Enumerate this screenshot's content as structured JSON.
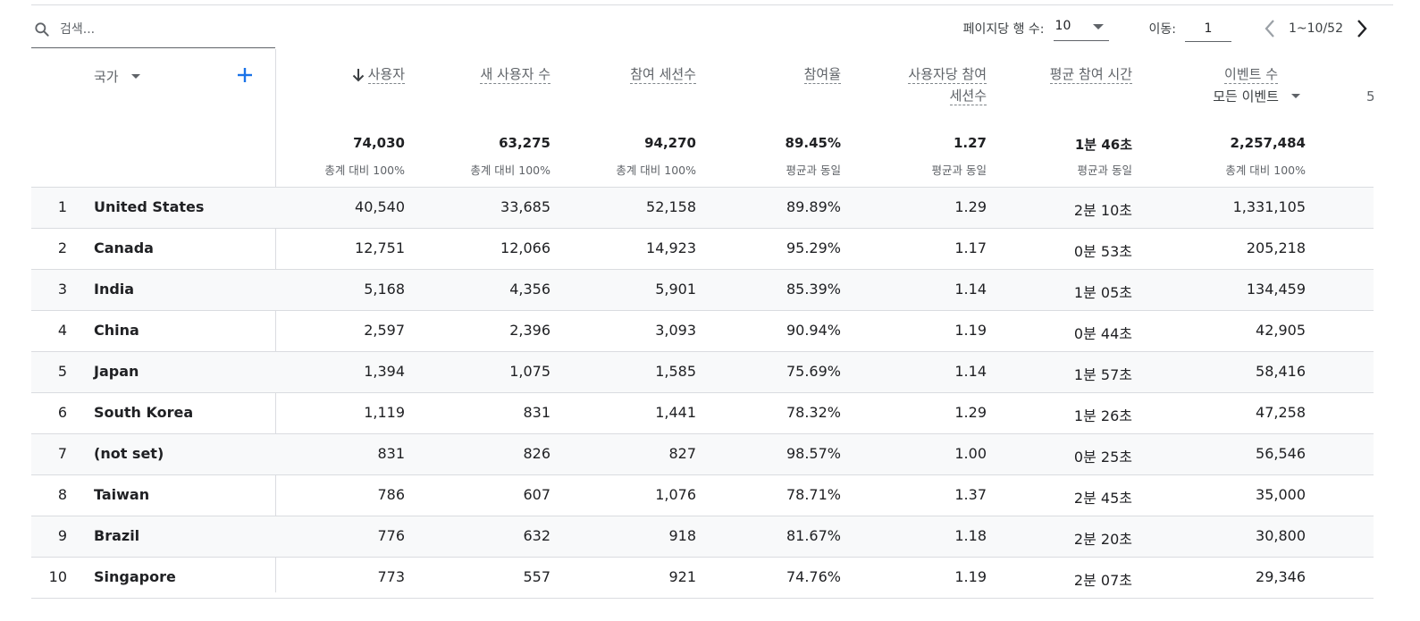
{
  "toolbar": {
    "search_placeholder": "검색...",
    "rows_per_page_label": "페이지당 행 수:",
    "rows_per_page_value": "10",
    "goto_label": "이동:",
    "goto_value": "1",
    "range_text": "1~10/52"
  },
  "table": {
    "dimension_header": "국가",
    "columns": [
      {
        "title": "사용자",
        "title_line2": "",
        "sorted": "desc",
        "total": "74,030",
        "note": "총계 대비 100%"
      },
      {
        "title": "새 사용자 수",
        "title_line2": "",
        "total": "63,275",
        "note": "총계 대비 100%"
      },
      {
        "title": "참여 세션수",
        "title_line2": "",
        "total": "94,270",
        "note": "총계 대비 100%"
      },
      {
        "title": "참여율",
        "title_line2": "",
        "total": "89.45%",
        "note": "평균과 동일"
      },
      {
        "title": "사용자당 참여",
        "title_line2": "세션수",
        "total": "1.27",
        "note": "평균과 동일"
      },
      {
        "title": "평균 참여 시간",
        "title_line2": "",
        "total": "1분 46초",
        "note": "평균과 동일"
      },
      {
        "title": "이벤트 수",
        "title_line2": "",
        "subselect": "모든 이벤트",
        "total": "2,257,484",
        "note": "총계 대비 100%"
      }
    ],
    "clipped_header_char": "5",
    "rows": [
      {
        "idx": "1",
        "country": "United States",
        "v": [
          "40,540",
          "33,685",
          "52,158",
          "89.89%",
          "1.29",
          "2분 10초",
          "1,331,105"
        ]
      },
      {
        "idx": "2",
        "country": "Canada",
        "v": [
          "12,751",
          "12,066",
          "14,923",
          "95.29%",
          "1.17",
          "0분 53초",
          "205,218"
        ]
      },
      {
        "idx": "3",
        "country": "India",
        "v": [
          "5,168",
          "4,356",
          "5,901",
          "85.39%",
          "1.14",
          "1분 05초",
          "134,459"
        ]
      },
      {
        "idx": "4",
        "country": "China",
        "v": [
          "2,597",
          "2,396",
          "3,093",
          "90.94%",
          "1.19",
          "0분 44초",
          "42,905"
        ]
      },
      {
        "idx": "5",
        "country": "Japan",
        "v": [
          "1,394",
          "1,075",
          "1,585",
          "75.69%",
          "1.14",
          "1분 57초",
          "58,416"
        ]
      },
      {
        "idx": "6",
        "country": "South Korea",
        "v": [
          "1,119",
          "831",
          "1,441",
          "78.32%",
          "1.29",
          "1분 26초",
          "47,258"
        ]
      },
      {
        "idx": "7",
        "country": "(not set)",
        "v": [
          "831",
          "826",
          "827",
          "98.57%",
          "1.00",
          "0분 25초",
          "56,546"
        ]
      },
      {
        "idx": "8",
        "country": "Taiwan",
        "v": [
          "786",
          "607",
          "1,076",
          "78.71%",
          "1.37",
          "2분 45초",
          "35,000"
        ]
      },
      {
        "idx": "9",
        "country": "Brazil",
        "v": [
          "776",
          "632",
          "918",
          "81.67%",
          "1.18",
          "2분 20초",
          "30,800"
        ]
      },
      {
        "idx": "10",
        "country": "Singapore",
        "v": [
          "773",
          "557",
          "921",
          "74.76%",
          "1.19",
          "2분 07초",
          "29,346"
        ]
      }
    ]
  },
  "icons": {
    "search": "search-icon",
    "sort": "arrow-down-icon",
    "add": "plus-icon",
    "prev": "chevron-left-icon",
    "next": "chevron-right-icon",
    "dropdown": "caret-down-icon"
  },
  "colors": {
    "accent": "#1a73e8",
    "row_alt": "#f8f9fa",
    "divider": "#dadce0",
    "muted_text": "#5f6368"
  }
}
